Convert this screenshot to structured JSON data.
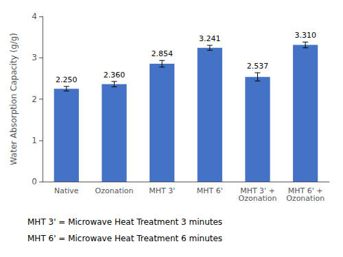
{
  "chart_data": {
    "type": "bar",
    "categories": [
      "Native",
      "Ozonation",
      "MHT 3'",
      "MHT 6'",
      "MHT 3' +\nOzonation",
      "MHT 6' +\nOzonation"
    ],
    "values": [
      2.25,
      2.36,
      2.854,
      3.241,
      2.537,
      3.31
    ],
    "errors": [
      0.055,
      0.065,
      0.08,
      0.06,
      0.1,
      0.07
    ],
    "value_labels": [
      "2.250",
      "2.360",
      "2.854",
      "3.241",
      "2.537",
      "3.310"
    ],
    "data_labels": true,
    "color": "#4472c4",
    "ylabel": "Water Absorption Capacity (g/g)",
    "ylim": [
      0,
      4
    ],
    "yticks": [
      0,
      1,
      2,
      3,
      4
    ],
    "grid": false,
    "annotations": [
      "MHT 3' = Microwave Heat Treatment 3 minutes",
      "MHT 6' = Microwave Heat Treatment 6 minutes"
    ]
  }
}
